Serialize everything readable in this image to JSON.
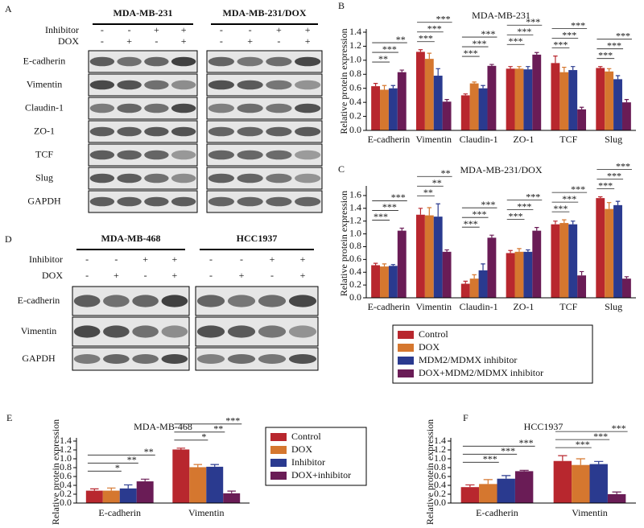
{
  "blots": [
    {
      "panel": "A",
      "conditions": [
        "Inhibitor",
        "DOX"
      ],
      "groups": [
        {
          "name": "MDA-MB-231",
          "signs": [
            [
              "-",
              "-",
              "+",
              "+"
            ],
            [
              "-",
              "+",
              "-",
              "+"
            ]
          ]
        },
        {
          "name": "MDA-MB-231/DOX",
          "signs": [
            [
              "-",
              "-",
              "+",
              "+"
            ],
            [
              "-",
              "+",
              "-",
              "+"
            ]
          ]
        }
      ],
      "proteins": [
        "E-cadherin",
        "Vimentin",
        "Claudin-1",
        "ZO-1",
        "TCF",
        "Slug",
        "GAPDH"
      ]
    },
    {
      "panel": "D",
      "conditions": [
        "Inhibitor",
        "DOX"
      ],
      "groups": [
        {
          "name": "MDA-MB-468",
          "signs": [
            [
              "-",
              "-",
              "+",
              "+"
            ],
            [
              "-",
              "+",
              "-",
              "+"
            ]
          ]
        },
        {
          "name": "HCC1937",
          "signs": [
            [
              "-",
              "-",
              "+",
              "+"
            ],
            [
              "-",
              "+",
              "-",
              "+"
            ]
          ]
        }
      ],
      "proteins": [
        "E-cadherin",
        "Vimentin",
        "GAPDH"
      ]
    }
  ],
  "chart_data": [
    {
      "type": "bar",
      "panel": "B",
      "title": "MDA-MB-231",
      "ylabel": "Relative protein expression",
      "categories": [
        "E-cadherin",
        "Vimentin",
        "Claudin-1",
        "ZO-1",
        "TCF",
        "Slug"
      ],
      "series": [
        {
          "color": "#b8272e",
          "values": [
            0.63,
            1.12,
            0.5,
            0.88,
            0.96,
            0.89
          ],
          "errors": [
            0.04,
            0.03,
            0.02,
            0.03,
            0.1,
            0.02
          ]
        },
        {
          "color": "#d5772f",
          "values": [
            0.58,
            1.02,
            0.67,
            0.88,
            0.83,
            0.84
          ],
          "errors": [
            0.06,
            0.08,
            0.02,
            0.03,
            0.07,
            0.04
          ]
        },
        {
          "color": "#2a3a8f",
          "values": [
            0.6,
            0.78,
            0.6,
            0.87,
            0.86,
            0.73
          ],
          "errors": [
            0.04,
            0.1,
            0.04,
            0.04,
            0.05,
            0.05
          ]
        },
        {
          "color": "#6a1c56",
          "values": [
            0.83,
            0.41,
            0.92,
            1.08,
            0.3,
            0.4
          ],
          "errors": [
            0.03,
            0.03,
            0.02,
            0.03,
            0.03,
            0.04
          ]
        }
      ],
      "significance": [
        [
          "**",
          "***",
          "**"
        ],
        [
          "***",
          "***",
          "***"
        ],
        [
          "***",
          "***",
          "***"
        ],
        [
          "***",
          "***",
          "***"
        ],
        [
          "***",
          "***",
          "***"
        ],
        [
          "***",
          "***",
          "***"
        ]
      ],
      "ylim": [
        0,
        1.4
      ],
      "yticks": [
        {
          "value": 0,
          "label": "0.0"
        },
        {
          "value": 0.2,
          "label": "0.2"
        },
        {
          "value": 0.4,
          "label": "0.4"
        },
        {
          "value": 0.6,
          "label": "0.6"
        },
        {
          "value": 0.8,
          "label": "0.8"
        },
        {
          "value": 1.0,
          "label": "1.0"
        },
        {
          "value": 1.2,
          "label": "1.2"
        },
        {
          "value": 1.4,
          "label": "1.4"
        }
      ]
    },
    {
      "type": "bar",
      "panel": "C",
      "title": "MDA-MB-231/DOX",
      "ylabel": "Relative protein expression",
      "categories": [
        "E-cadherin",
        "Vimentin",
        "Claudin-1",
        "ZO-1",
        "TCF",
        "Slug"
      ],
      "series": [
        {
          "name": "Control",
          "color": "#b8272e",
          "values": [
            0.51,
            1.3,
            0.22,
            0.7,
            1.15,
            1.56
          ],
          "errors": [
            0.03,
            0.1,
            0.04,
            0.04,
            0.05,
            0.02
          ]
        },
        {
          "name": "DOX",
          "color": "#d5772f",
          "values": [
            0.49,
            1.29,
            0.3,
            0.72,
            1.17,
            1.39
          ],
          "errors": [
            0.04,
            0.12,
            0.06,
            0.05,
            0.05,
            0.1
          ]
        },
        {
          "name": "MDM2/MDMX inhibitor",
          "color": "#2a3a8f",
          "values": [
            0.5,
            1.27,
            0.43,
            0.72,
            1.15,
            1.45
          ],
          "errors": [
            0.02,
            0.2,
            0.1,
            0.03,
            0.05,
            0.06
          ]
        },
        {
          "name": "DOX+MDM2/MDMX inhibitor",
          "color": "#6a1c56",
          "values": [
            1.05,
            0.72,
            0.94,
            1.05,
            0.35,
            0.3
          ],
          "errors": [
            0.04,
            0.03,
            0.04,
            0.05,
            0.06,
            0.03
          ]
        }
      ],
      "significance": [
        [
          "***",
          "***",
          "***"
        ],
        [
          "**",
          "**",
          "**"
        ],
        [
          "***",
          "***",
          "***"
        ],
        [
          "***",
          "***",
          "***"
        ],
        [
          "***",
          "***",
          "***"
        ],
        [
          "***",
          "***",
          "***"
        ]
      ],
      "ylim": [
        0,
        1.7
      ],
      "yticks": [
        {
          "value": 0,
          "label": "0.0"
        },
        {
          "value": 0.2,
          "label": "0.2"
        },
        {
          "value": 0.4,
          "label": "0.4"
        },
        {
          "value": 0.6,
          "label": "0.6"
        },
        {
          "value": 0.8,
          "label": "0.8"
        },
        {
          "value": 1.0,
          "label": "1.0"
        },
        {
          "value": 1.2,
          "label": "1.2"
        },
        {
          "value": 1.4,
          "label": "1.4"
        },
        {
          "value": 1.6,
          "label": "1.6"
        }
      ]
    },
    {
      "type": "bar",
      "panel": "E",
      "title": "MDA-MB-468",
      "ylabel": "Relative protein expression",
      "categories": [
        "E-cadherin",
        "Vimentin"
      ],
      "series": [
        {
          "name": "Control",
          "color": "#b8272e",
          "values": [
            0.28,
            1.21
          ],
          "errors": [
            0.04,
            0.03
          ]
        },
        {
          "name": "DOX",
          "color": "#d5772f",
          "values": [
            0.28,
            0.81
          ],
          "errors": [
            0.06,
            0.06
          ]
        },
        {
          "name": "Inhibitor",
          "color": "#2a3a8f",
          "values": [
            0.33,
            0.82
          ],
          "errors": [
            0.08,
            0.05
          ]
        },
        {
          "name": "DOX+inhibitor",
          "color": "#6a1c56",
          "values": [
            0.49,
            0.22
          ],
          "errors": [
            0.05,
            0.05
          ]
        }
      ],
      "significance": [
        [
          "**",
          "**",
          "*"
        ],
        [
          "***",
          "**",
          "*"
        ]
      ],
      "ylim": [
        0,
        1.4
      ],
      "yticks": [
        {
          "value": 0,
          "label": "0.0"
        },
        {
          "value": 0.2,
          "label": "0.2"
        },
        {
          "value": 0.4,
          "label": "0.4"
        },
        {
          "value": 0.6,
          "label": "0.6"
        },
        {
          "value": 0.8,
          "label": "0.8"
        },
        {
          "value": 1.0,
          "label": "1.0"
        },
        {
          "value": 1.2,
          "label": "1.2"
        },
        {
          "value": 1.4,
          "label": "1.4"
        }
      ]
    },
    {
      "type": "bar",
      "panel": "F",
      "title": "HCC1937",
      "ylabel": "Relative protein expression",
      "categories": [
        "E-cadherin",
        "Vimentin"
      ],
      "series": [
        {
          "color": "#b8272e",
          "values": [
            0.36,
            0.95
          ],
          "errors": [
            0.05,
            0.12
          ]
        },
        {
          "color": "#d5772f",
          "values": [
            0.43,
            0.86
          ],
          "errors": [
            0.1,
            0.14
          ]
        },
        {
          "color": "#2a3a8f",
          "values": [
            0.55,
            0.88
          ],
          "errors": [
            0.07,
            0.06
          ]
        },
        {
          "color": "#6a1c56",
          "values": [
            0.72,
            0.2
          ],
          "errors": [
            0.02,
            0.05
          ]
        }
      ],
      "significance": [
        [
          "***",
          "***",
          "***"
        ],
        [
          "***",
          "***",
          "***"
        ]
      ],
      "ylim": [
        0,
        1.4
      ],
      "yticks": [
        {
          "value": 0,
          "label": "0.0"
        },
        {
          "value": 0.2,
          "label": "0.2"
        },
        {
          "value": 0.4,
          "label": "0.4"
        },
        {
          "value": 0.6,
          "label": "0.6"
        },
        {
          "value": 0.8,
          "label": "0.8"
        },
        {
          "value": 1.0,
          "label": "1.0"
        },
        {
          "value": 1.2,
          "label": "1.2"
        },
        {
          "value": 1.4,
          "label": "1.4"
        }
      ]
    }
  ]
}
